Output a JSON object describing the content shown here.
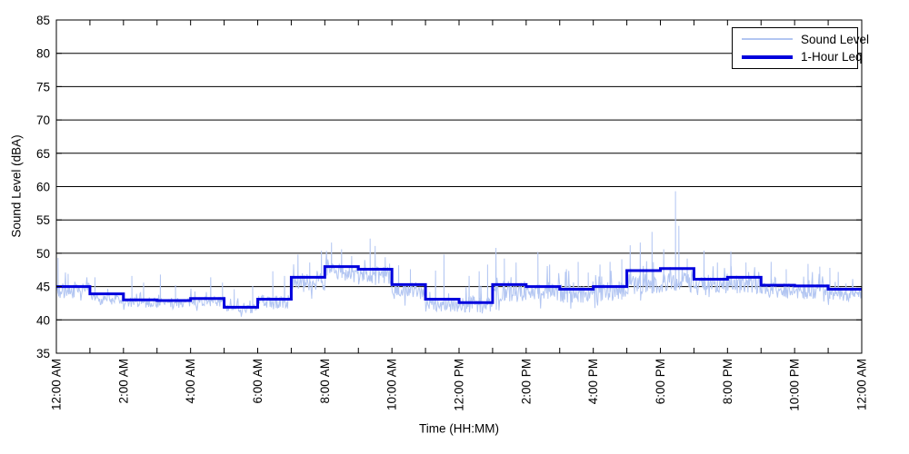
{
  "chart_data": {
    "type": "line",
    "title": "",
    "xlabel": "Time (HH:MM)",
    "ylabel": "Sound Level (dBA)",
    "ylim": [
      35,
      85
    ],
    "xlim_hours": [
      0,
      24
    ],
    "y_ticks": [
      35,
      40,
      45,
      50,
      55,
      60,
      65,
      70,
      75,
      80,
      85
    ],
    "x_major_ticks": [
      {
        "hour": 0,
        "label": "12:00 AM"
      },
      {
        "hour": 2,
        "label": "2:00 AM"
      },
      {
        "hour": 4,
        "label": "4:00 AM"
      },
      {
        "hour": 6,
        "label": "6:00 AM"
      },
      {
        "hour": 8,
        "label": "8:00 AM"
      },
      {
        "hour": 10,
        "label": "10:00 AM"
      },
      {
        "hour": 12,
        "label": "12:00 PM"
      },
      {
        "hour": 14,
        "label": "2:00 PM"
      },
      {
        "hour": 16,
        "label": "4:00 PM"
      },
      {
        "hour": 18,
        "label": "6:00 PM"
      },
      {
        "hour": 20,
        "label": "8:00 PM"
      },
      {
        "hour": 22,
        "label": "10:00 PM"
      },
      {
        "hour": 24,
        "label": "12:00 AM"
      }
    ],
    "x_minor_tick_every_hours": 1,
    "grid": "horizontal-solid-black",
    "legend_position": "top-right-inside",
    "colors": {
      "noise_trace": "#b3c6f2",
      "leq_line": "#0000dd",
      "axis": "#000000",
      "background": "#ffffff"
    },
    "series": [
      {
        "name": "Sound Level",
        "type": "noisy-minute-trace",
        "color": "#b3c6f2",
        "line_width": 1,
        "hourly_noise_profile": [
          {
            "hour": 0,
            "base": 44.2,
            "amp": 1.3
          },
          {
            "hour": 1,
            "base": 43.2,
            "amp": 0.9
          },
          {
            "hour": 2,
            "base": 42.6,
            "amp": 0.8
          },
          {
            "hour": 3,
            "base": 42.6,
            "amp": 0.8
          },
          {
            "hour": 4,
            "base": 42.8,
            "amp": 0.8
          },
          {
            "hour": 5,
            "base": 41.6,
            "amp": 0.7
          },
          {
            "hour": 6,
            "base": 42.7,
            "amp": 1.0
          },
          {
            "hour": 7,
            "base": 45.6,
            "amp": 1.4
          },
          {
            "hour": 8,
            "base": 47.2,
            "amp": 1.3
          },
          {
            "hour": 9,
            "base": 46.6,
            "amp": 1.4
          },
          {
            "hour": 10,
            "base": 44.4,
            "amp": 1.3
          },
          {
            "hour": 11,
            "base": 42.3,
            "amp": 1.1
          },
          {
            "hour": 12,
            "base": 42.2,
            "amp": 1.3
          },
          {
            "hour": 13,
            "base": 44.3,
            "amp": 1.6
          },
          {
            "hour": 14,
            "base": 44.2,
            "amp": 1.5
          },
          {
            "hour": 15,
            "base": 43.9,
            "amp": 1.4
          },
          {
            "hour": 16,
            "base": 44.2,
            "amp": 1.4
          },
          {
            "hour": 17,
            "base": 45.4,
            "amp": 1.6
          },
          {
            "hour": 18,
            "base": 45.6,
            "amp": 1.6
          },
          {
            "hour": 19,
            "base": 45.1,
            "amp": 1.4
          },
          {
            "hour": 20,
            "base": 45.2,
            "amp": 1.3
          },
          {
            "hour": 21,
            "base": 44.4,
            "amp": 1.2
          },
          {
            "hour": 22,
            "base": 44.3,
            "amp": 1.2
          },
          {
            "hour": 23,
            "base": 43.9,
            "amp": 1.1
          }
        ],
        "spikes": [
          [
            0.05,
            49.3
          ],
          [
            0.35,
            46.9
          ],
          [
            1.15,
            46.4
          ],
          [
            2.25,
            46.6
          ],
          [
            2.6,
            45.6
          ],
          [
            3.1,
            46.8
          ],
          [
            3.55,
            45.2
          ],
          [
            4.6,
            46.4
          ],
          [
            4.95,
            45.6
          ],
          [
            5.3,
            44.6
          ],
          [
            5.85,
            45.1
          ],
          [
            6.45,
            47.3
          ],
          [
            6.8,
            46.6
          ],
          [
            7.2,
            49.8
          ],
          [
            7.55,
            48.6
          ],
          [
            7.9,
            50.4
          ],
          [
            8.2,
            51.6
          ],
          [
            8.5,
            50.6
          ],
          [
            8.8,
            49.6
          ],
          [
            9.35,
            52.2
          ],
          [
            9.5,
            51.1
          ],
          [
            9.8,
            49.4
          ],
          [
            10.2,
            48.2
          ],
          [
            10.55,
            47.6
          ],
          [
            11.3,
            47.4
          ],
          [
            11.55,
            49.8
          ],
          [
            12.3,
            46.6
          ],
          [
            12.6,
            47.3
          ],
          [
            12.85,
            48.3
          ],
          [
            13.1,
            50.8
          ],
          [
            13.35,
            49.2
          ],
          [
            13.7,
            48.6
          ],
          [
            14.35,
            50.2
          ],
          [
            14.7,
            48.3
          ],
          [
            15.2,
            47.6
          ],
          [
            15.55,
            48.7
          ],
          [
            15.85,
            47.1
          ],
          [
            16.2,
            48.3
          ],
          [
            16.5,
            48.7
          ],
          [
            16.85,
            49.1
          ],
          [
            17.1,
            51.2
          ],
          [
            17.4,
            51.6
          ],
          [
            17.75,
            53.2
          ],
          [
            18.1,
            50.6
          ],
          [
            18.45,
            59.3
          ],
          [
            18.55,
            54.1
          ],
          [
            18.8,
            49.2
          ],
          [
            19.3,
            50.4
          ],
          [
            19.7,
            48.6
          ],
          [
            20.1,
            50.3
          ],
          [
            20.55,
            48.6
          ],
          [
            21.3,
            48.7
          ],
          [
            21.75,
            47.6
          ],
          [
            22.4,
            48.4
          ],
          [
            22.75,
            48.0
          ],
          [
            23.05,
            47.8
          ],
          [
            23.3,
            47.2
          ]
        ]
      },
      {
        "name": "1-Hour Leq",
        "type": "hourly-step",
        "color": "#0000dd",
        "line_width": 3,
        "hourly_leq_values": [
          45.0,
          43.9,
          43.0,
          42.9,
          43.2,
          41.9,
          43.1,
          46.4,
          48.0,
          47.6,
          45.3,
          43.1,
          42.6,
          45.3,
          45.0,
          44.6,
          45.0,
          47.4,
          47.7,
          46.1,
          46.4,
          45.2,
          45.1,
          44.6
        ]
      }
    ]
  }
}
